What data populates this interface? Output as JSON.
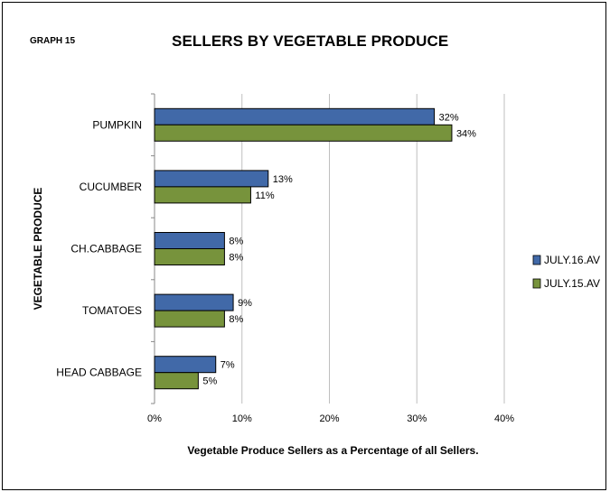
{
  "graph_number": "GRAPH 15",
  "chart_data": {
    "type": "bar",
    "orientation": "horizontal",
    "title": "SELLERS BY VEGETABLE PRODUCE",
    "xlabel": "Vegetable Produce Sellers as a Percentage of all Sellers.",
    "ylabel": "VEGETABLE PRODUCE",
    "categories": [
      "PUMPKIN",
      "CUCUMBER",
      "CH.CABBAGE",
      "TOMATOES",
      "HEAD CABBAGE"
    ],
    "series": [
      {
        "name": "JULY.16.AV",
        "values": [
          32,
          13,
          8,
          9,
          7
        ],
        "labels": [
          "32%",
          "13%",
          "8%",
          "9%",
          "7%"
        ],
        "color": "#4169A8"
      },
      {
        "name": "JULY.15.AV",
        "values": [
          34,
          11,
          8,
          8,
          5
        ],
        "labels": [
          "34%",
          "11%",
          "8%",
          "8%",
          "5%"
        ],
        "color": "#77933C"
      }
    ],
    "xlim": [
      0,
      40
    ],
    "xticks": [
      "0%",
      "10%",
      "20%",
      "30%",
      "40%"
    ],
    "grid": true,
    "legend": "right"
  }
}
